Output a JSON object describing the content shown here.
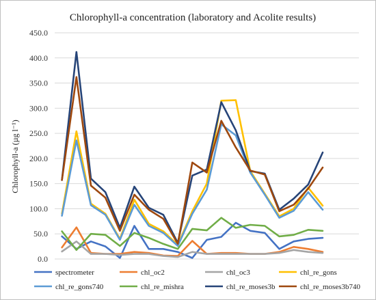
{
  "chart_data": {
    "type": "line",
    "title": "Chlorophyll-a concentration  (laboratory and Acolite results)",
    "ylabel": "Chlorophyll-a (µg l⁻¹)",
    "xlabel": "",
    "ylim": [
      0,
      450
    ],
    "yticks": [
      "0.0",
      "50.0",
      "100.0",
      "150.0",
      "200.0",
      "250.0",
      "300.0",
      "350.0",
      "400.0",
      "450.0"
    ],
    "grid": true,
    "legend_position": "bottom",
    "x": [
      1,
      2,
      3,
      4,
      5,
      6,
      7,
      8,
      9,
      10,
      11,
      12,
      13,
      14,
      15,
      16,
      17,
      18,
      19,
      20,
      21
    ],
    "series": [
      {
        "name": "spectrometer",
        "color": "#4472c4",
        "values": [
          45,
          20,
          35,
          25,
          2,
          66,
          20,
          20,
          14,
          2,
          38,
          44,
          72,
          56,
          52,
          20,
          35,
          40,
          42,
          null,
          null
        ]
      },
      {
        "name": "chl_oc2",
        "color": "#ed7d31",
        "values": [
          23,
          63,
          12,
          10,
          10,
          14,
          12,
          7,
          6,
          36,
          10,
          12,
          12,
          10,
          10,
          14,
          24,
          20,
          14,
          null,
          null
        ]
      },
      {
        "name": "chl_oc3",
        "color": "#a5a5a5",
        "values": [
          15,
          35,
          10,
          10,
          8,
          10,
          10,
          6,
          4,
          14,
          10,
          10,
          10,
          10,
          10,
          12,
          18,
          14,
          12,
          null,
          null
        ]
      },
      {
        "name": "chl_re_gons",
        "color": "#ffc000",
        "values": [
          90,
          254,
          110,
          90,
          40,
          118,
          70,
          55,
          28,
          95,
          150,
          315,
          316,
          175,
          130,
          85,
          100,
          142,
          106,
          null,
          null
        ]
      },
      {
        "name": "chl_re_gons740",
        "color": "#5b9bd5",
        "values": [
          86,
          236,
          107,
          88,
          38,
          108,
          66,
          52,
          26,
          90,
          138,
          268,
          246,
          172,
          128,
          82,
          96,
          133,
          98,
          null,
          null
        ]
      },
      {
        "name": "chl_re_mishra",
        "color": "#70ad47",
        "values": [
          55,
          18,
          50,
          48,
          26,
          52,
          42,
          30,
          20,
          60,
          57,
          82,
          62,
          68,
          66,
          45,
          48,
          58,
          56,
          null,
          null
        ]
      },
      {
        "name": "chl_re_moses3b",
        "color": "#264478",
        "values": [
          157,
          412,
          160,
          133,
          62,
          144,
          102,
          88,
          32,
          166,
          178,
          312,
          256,
          175,
          170,
          98,
          120,
          148,
          212,
          null,
          null
        ]
      },
      {
        "name": "chl_re_moses3b740",
        "color": "#9e480e",
        "values": [
          157,
          362,
          146,
          122,
          56,
          128,
          98,
          80,
          30,
          192,
          172,
          275,
          222,
          176,
          168,
          95,
          108,
          140,
          182,
          null,
          null
        ]
      }
    ]
  }
}
